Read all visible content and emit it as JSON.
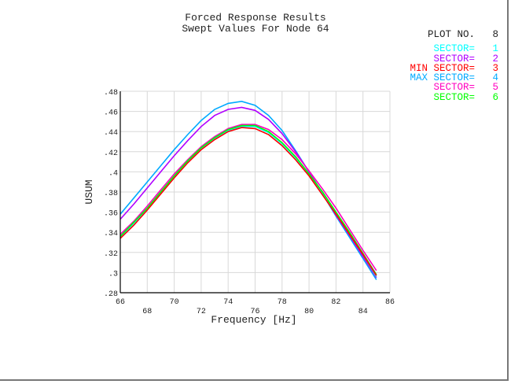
{
  "chart_data": {
    "type": "line",
    "title": "Forced Response Results",
    "subtitle": "Swept Values For Node 64",
    "xlabel": "Frequency [Hz]",
    "ylabel": "USUM",
    "xlim": [
      66,
      86
    ],
    "ylim": [
      0.28,
      0.48
    ],
    "grid": true,
    "legend_placement": "top-right",
    "xticks": [
      "66",
      "68",
      "70",
      "72",
      "74",
      "76",
      "78",
      "80",
      "82",
      "84",
      "86"
    ],
    "yticks": [
      ".28",
      ".3",
      ".32",
      ".34",
      ".36",
      ".38",
      ".4",
      ".42",
      ".44",
      ".46",
      ".48"
    ],
    "x": [
      66,
      67,
      68,
      69,
      70,
      71,
      72,
      73,
      74,
      75,
      76,
      77,
      78,
      79,
      80,
      81,
      82,
      83,
      84,
      85
    ],
    "series": [
      {
        "name": "SECTOR= 1",
        "color": "#00ffff",
        "values": [
          0.335,
          0.349,
          0.363,
          0.379,
          0.395,
          0.41,
          0.423,
          0.433,
          0.441,
          0.445,
          0.445,
          0.439,
          0.428,
          0.414,
          0.397,
          0.379,
          0.359,
          0.339,
          0.318,
          0.296
        ]
      },
      {
        "name": "SECTOR= 2",
        "color": "#b000ff",
        "values": [
          0.353,
          0.368,
          0.384,
          0.4,
          0.416,
          0.431,
          0.445,
          0.456,
          0.462,
          0.464,
          0.461,
          0.452,
          0.438,
          0.42,
          0.4,
          0.379,
          0.357,
          0.337,
          0.316,
          0.295
        ]
      },
      {
        "name": "MIN SECTOR= 3",
        "color": "#ff0000",
        "values": [
          0.334,
          0.347,
          0.362,
          0.378,
          0.394,
          0.409,
          0.422,
          0.432,
          0.44,
          0.444,
          0.443,
          0.437,
          0.426,
          0.412,
          0.396,
          0.377,
          0.358,
          0.338,
          0.318,
          0.297
        ]
      },
      {
        "name": "MAX SECTOR= 4",
        "color": "#00aaff",
        "values": [
          0.358,
          0.374,
          0.39,
          0.406,
          0.422,
          0.437,
          0.451,
          0.462,
          0.468,
          0.47,
          0.466,
          0.456,
          0.441,
          0.421,
          0.4,
          0.378,
          0.356,
          0.335,
          0.314,
          0.293
        ]
      },
      {
        "name": "SECTOR= 5",
        "color": "#ff00c0",
        "values": [
          0.338,
          0.351,
          0.366,
          0.382,
          0.398,
          0.412,
          0.425,
          0.435,
          0.443,
          0.447,
          0.447,
          0.442,
          0.432,
          0.418,
          0.401,
          0.383,
          0.364,
          0.343,
          0.322,
          0.302
        ]
      },
      {
        "name": "SECTOR= 6",
        "color": "#00ff00",
        "values": [
          0.336,
          0.35,
          0.364,
          0.38,
          0.396,
          0.411,
          0.424,
          0.434,
          0.442,
          0.446,
          0.446,
          0.44,
          0.429,
          0.415,
          0.398,
          0.38,
          0.36,
          0.34,
          0.319,
          0.298
        ]
      }
    ]
  },
  "legend": {
    "plot_label": "PLOT NO.",
    "plot_number": "8",
    "items": [
      {
        "label": "SECTOR=",
        "num": "1",
        "color": "#00ffff"
      },
      {
        "label": "SECTOR=",
        "num": "2",
        "color": "#b000ff"
      },
      {
        "label": "MIN SECTOR=",
        "num": "3",
        "color": "#ff0000"
      },
      {
        "label": "MAX SECTOR=",
        "num": "4",
        "color": "#00aaff"
      },
      {
        "label": "SECTOR=",
        "num": "5",
        "color": "#ff00c0"
      },
      {
        "label": "SECTOR=",
        "num": "6",
        "color": "#00ff00"
      }
    ]
  }
}
